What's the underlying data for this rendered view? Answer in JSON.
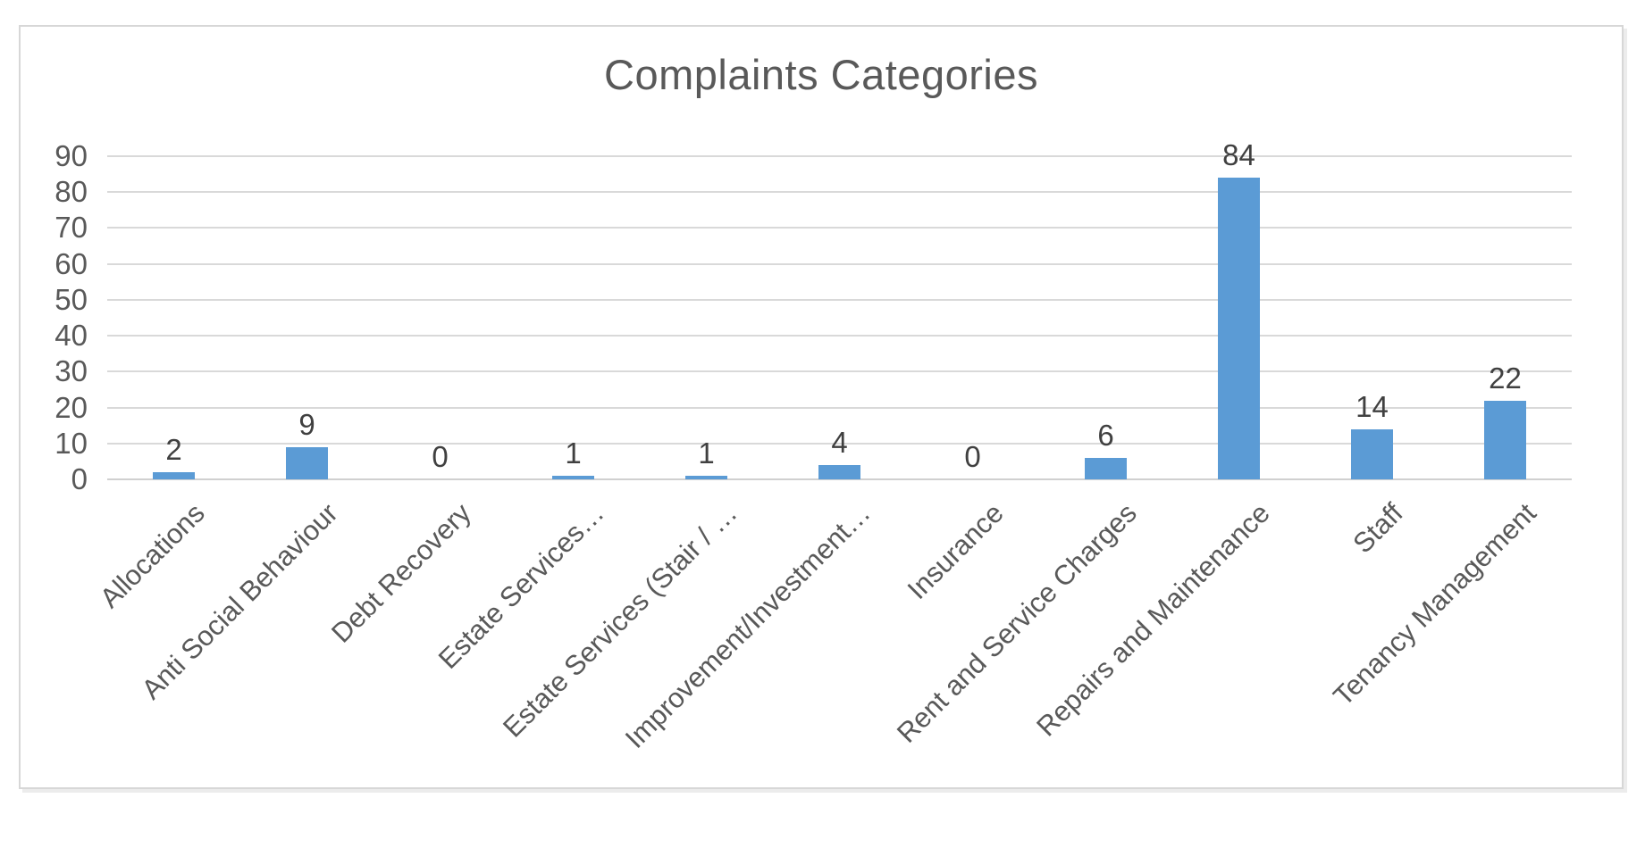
{
  "chart_data": {
    "type": "bar",
    "title": "Complaints Categories",
    "categories": [
      "Allocations",
      "Anti Social Behaviour",
      "Debt Recovery",
      "Estate Services…",
      "Estate Services (Stair / …",
      "Improvement/Investment…",
      "Insurance",
      "Rent and Service Charges",
      "Repairs and Maintenance",
      "Staff",
      "Tenancy Management"
    ],
    "values": [
      2,
      9,
      0,
      1,
      1,
      4,
      0,
      6,
      84,
      14,
      22
    ],
    "xlabel": "",
    "ylabel": "",
    "ylim": [
      0,
      90
    ],
    "yticks": [
      0,
      10,
      20,
      30,
      40,
      50,
      60,
      70,
      80,
      90
    ],
    "grid": true,
    "legend": false,
    "bar_color": "#5b9bd5",
    "gridline_color": "#d9d9d9",
    "title_color": "#595959",
    "axis_label_color": "#595959",
    "data_label_color": "#404040",
    "frame_border_color": "#d7d7d7"
  }
}
